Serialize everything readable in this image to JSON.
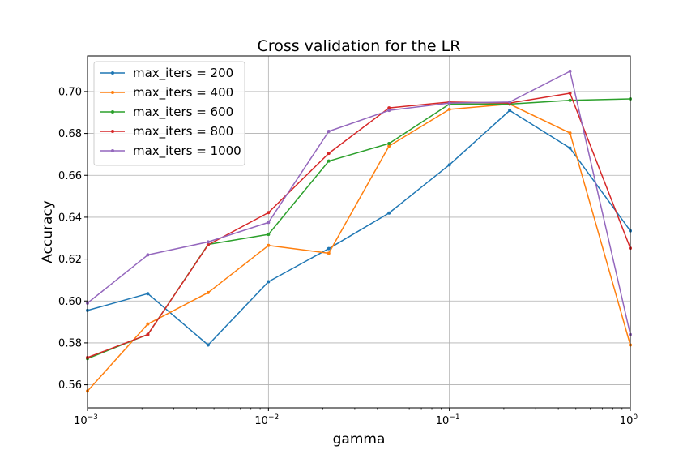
{
  "chart_data": {
    "type": "line",
    "title": "Cross validation for the LR",
    "xlabel": "gamma",
    "ylabel": "Accuracy",
    "xscale": "log",
    "xlim": [
      0.001,
      1
    ],
    "ylim": [
      0.549,
      0.717
    ],
    "grid": true,
    "legend_position": "top-left",
    "x": [
      0.001,
      0.00215443,
      0.00464159,
      0.01,
      0.02154435,
      0.04641589,
      0.1,
      0.21544347,
      0.46415888,
      1.0
    ],
    "x_ticks": [
      0.001,
      0.01,
      0.1,
      1
    ],
    "x_tick_labels": [
      {
        "base": "10",
        "exp": "−3"
      },
      {
        "base": "10",
        "exp": "−2"
      },
      {
        "base": "10",
        "exp": "−1"
      },
      {
        "base": "10",
        "exp": "0"
      }
    ],
    "y_ticks": [
      0.56,
      0.58,
      0.6,
      0.62,
      0.64,
      0.66,
      0.68,
      0.7
    ],
    "y_tick_labels": [
      "0.56",
      "0.58",
      "0.60",
      "0.62",
      "0.64",
      "0.66",
      "0.68",
      "0.70"
    ],
    "series": [
      {
        "name": "max_iters = 200",
        "color": "#1f77b4",
        "values": [
          0.5955,
          0.6035,
          0.579,
          0.6092,
          0.625,
          0.642,
          0.665,
          0.691,
          0.673,
          0.6335
        ]
      },
      {
        "name": "max_iters = 400",
        "color": "#ff7f0e",
        "values": [
          0.557,
          0.589,
          0.604,
          0.6265,
          0.6228,
          0.674,
          0.6915,
          0.694,
          0.6802,
          0.579
        ]
      },
      {
        "name": "max_iters = 600",
        "color": "#2ca02c",
        "values": [
          0.5725,
          0.584,
          0.627,
          0.6318,
          0.6668,
          0.6752,
          0.694,
          0.694,
          0.6958,
          0.6965
        ]
      },
      {
        "name": "max_iters = 800",
        "color": "#d62728",
        "values": [
          0.573,
          0.584,
          0.6268,
          0.6422,
          0.6705,
          0.6922,
          0.695,
          0.6945,
          0.6992,
          0.6252
        ]
      },
      {
        "name": "max_iters = 1000",
        "color": "#9467bd",
        "values": [
          0.599,
          0.622,
          0.6282,
          0.6375,
          0.681,
          0.691,
          0.6945,
          0.695,
          0.7097,
          0.584
        ]
      }
    ]
  }
}
